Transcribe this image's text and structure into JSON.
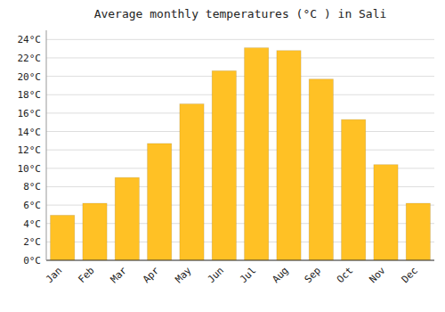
{
  "chart_data": {
    "type": "bar",
    "title": "Average monthly temperatures (°C ) in Sali",
    "categories": [
      "Jan",
      "Feb",
      "Mar",
      "Apr",
      "May",
      "Jun",
      "Jul",
      "Aug",
      "Sep",
      "Oct",
      "Nov",
      "Dec"
    ],
    "values": [
      4.9,
      6.2,
      9.0,
      12.7,
      17.0,
      20.6,
      23.1,
      22.8,
      19.7,
      15.3,
      10.4,
      6.2
    ],
    "color": "#FFC125",
    "ylim": [
      0,
      25
    ],
    "yticks": [
      {
        "value": 0,
        "label": "0°C"
      },
      {
        "value": 2,
        "label": "2°C"
      },
      {
        "value": 4,
        "label": "4°C"
      },
      {
        "value": 6,
        "label": "6°C"
      },
      {
        "value": 8,
        "label": "8°C"
      },
      {
        "value": 10,
        "label": "10°C"
      },
      {
        "value": 12,
        "label": "12°C"
      },
      {
        "value": 14,
        "label": "14°C"
      },
      {
        "value": 16,
        "label": "16°C"
      },
      {
        "value": 18,
        "label": "18°C"
      },
      {
        "value": 20,
        "label": "20°C"
      },
      {
        "value": 22,
        "label": "22°C"
      },
      {
        "value": 24,
        "label": "24°C"
      }
    ],
    "grid": true
  }
}
